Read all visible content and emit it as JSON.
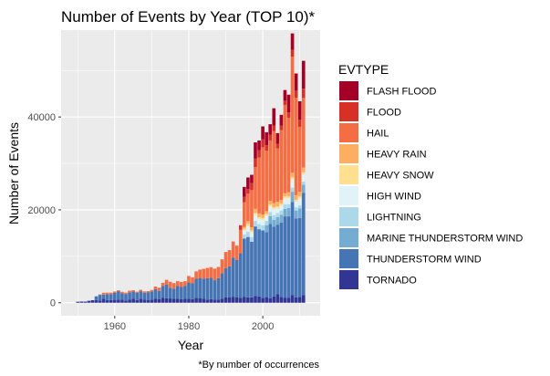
{
  "chart_data": {
    "type": "bar",
    "stacked": true,
    "title": "Number of Events by Year (TOP 10)*",
    "caption": "*By number of occurrences",
    "xlabel": "Year",
    "ylabel": "Number of Events",
    "xlim": [
      1945.5,
      2015.5
    ],
    "ylim": [
      -2800,
      58700
    ],
    "x_ticks": [
      1960,
      1980,
      2000
    ],
    "y_ticks": [
      0,
      20000,
      40000
    ],
    "x_tick_labels": [
      "1960",
      "1980",
      "2000"
    ],
    "y_tick_labels": [
      "0",
      "20000",
      "40000"
    ],
    "grid": true,
    "legend": {
      "title": "EVTYPE",
      "position": "right"
    },
    "years": [
      1950,
      1951,
      1952,
      1953,
      1954,
      1955,
      1956,
      1957,
      1958,
      1959,
      1960,
      1961,
      1962,
      1963,
      1964,
      1965,
      1966,
      1967,
      1968,
      1969,
      1970,
      1971,
      1972,
      1973,
      1974,
      1975,
      1976,
      1977,
      1978,
      1979,
      1980,
      1981,
      1982,
      1983,
      1984,
      1985,
      1986,
      1987,
      1988,
      1989,
      1990,
      1991,
      1992,
      1993,
      1994,
      1995,
      1996,
      1997,
      1998,
      1999,
      2000,
      2001,
      2002,
      2003,
      2004,
      2005,
      2006,
      2007,
      2008,
      2009,
      2010,
      2011
    ],
    "series": [
      {
        "name": "TORNADO",
        "color": "#313695",
        "values": [
          220,
          260,
          240,
          420,
          550,
          590,
          500,
          850,
          570,
          580,
          620,
          690,
          650,
          480,
          700,
          900,
          580,
          880,
          650,
          610,
          660,
          890,
          750,
          1100,
          950,
          920,
          830,
          850,
          790,
          850,
          860,
          780,
          1050,
          930,
          900,
          690,
          760,
          650,
          700,
          850,
          1130,
          1130,
          1300,
          1200,
          1090,
          1230,
          1170,
          1150,
          1430,
          1340,
          1070,
          1210,
          940,
          1370,
          1820,
          1260,
          1100,
          1100,
          1690,
          1160,
          1280,
          1690
        ]
      },
      {
        "name": "THUNDERSTORM WIND",
        "color": "#4575B4",
        "values": [
          0,
          0,
          0,
          0,
          0,
          800,
          1200,
          900,
          1300,
          1300,
          1500,
          1800,
          1400,
          1400,
          1500,
          1500,
          1600,
          1600,
          1500,
          1600,
          1800,
          2000,
          1800,
          2500,
          3000,
          2300,
          2200,
          2800,
          2600,
          2800,
          3500,
          3400,
          4100,
          4400,
          4300,
          4600,
          4600,
          4200,
          4600,
          5500,
          6300,
          6700,
          8400,
          8000,
          9600,
          12600,
          13000,
          12000,
          15000,
          14500,
          14500,
          14000,
          16000,
          15000,
          15000,
          16000,
          17500,
          17500,
          20000,
          17000,
          17000,
          22000
        ]
      },
      {
        "name": "MARINE THUNDERSTORM WIND",
        "color": "#74ADD1",
        "values": [
          0,
          0,
          0,
          0,
          0,
          0,
          0,
          0,
          0,
          0,
          0,
          0,
          0,
          0,
          0,
          0,
          0,
          0,
          0,
          0,
          0,
          0,
          0,
          0,
          0,
          0,
          0,
          0,
          0,
          0,
          0,
          0,
          0,
          0,
          0,
          0,
          0,
          0,
          0,
          0,
          0,
          0,
          0,
          0,
          0,
          0,
          0,
          0,
          0,
          0,
          0,
          1500,
          1700,
          1500,
          1600,
          1700,
          1600,
          1800,
          2200,
          1700,
          2000,
          1700
        ]
      },
      {
        "name": "LIGHTNING",
        "color": "#ABD9E9",
        "values": [
          0,
          0,
          0,
          0,
          0,
          0,
          0,
          0,
          0,
          0,
          0,
          0,
          0,
          0,
          0,
          0,
          0,
          0,
          0,
          0,
          0,
          0,
          0,
          0,
          0,
          0,
          0,
          0,
          0,
          0,
          0,
          0,
          0,
          0,
          0,
          0,
          0,
          0,
          0,
          0,
          0,
          0,
          0,
          0,
          0,
          900,
          1100,
          1000,
          1200,
          1100,
          1100,
          900,
          900,
          1000,
          900,
          900,
          1000,
          800,
          900,
          700,
          700,
          700
        ]
      },
      {
        "name": "HIGH WIND",
        "color": "#E0F3F8",
        "values": [
          0,
          0,
          0,
          0,
          0,
          0,
          0,
          0,
          0,
          0,
          0,
          0,
          0,
          0,
          0,
          0,
          0,
          0,
          0,
          0,
          0,
          0,
          0,
          0,
          0,
          0,
          0,
          0,
          0,
          0,
          0,
          0,
          0,
          0,
          0,
          0,
          0,
          0,
          0,
          0,
          0,
          0,
          0,
          0,
          0,
          800,
          1200,
          1000,
          1300,
          1100,
          1200,
          1100,
          1200,
          1300,
          1000,
          1100,
          1300,
          1300,
          1800,
          1200,
          1500,
          1600
        ]
      },
      {
        "name": "HEAVY SNOW",
        "color": "#FEE090",
        "values": [
          0,
          0,
          0,
          0,
          0,
          0,
          0,
          0,
          0,
          0,
          0,
          0,
          0,
          0,
          0,
          0,
          0,
          0,
          0,
          0,
          0,
          0,
          0,
          0,
          0,
          0,
          0,
          0,
          0,
          0,
          0,
          0,
          0,
          0,
          0,
          0,
          0,
          0,
          0,
          0,
          0,
          0,
          0,
          0,
          0,
          400,
          500,
          400,
          400,
          400,
          400,
          400,
          400,
          400,
          400,
          400,
          400,
          400,
          400,
          400,
          400,
          400
        ]
      },
      {
        "name": "HEAVY RAIN",
        "color": "#FDAE61",
        "values": [
          0,
          0,
          0,
          0,
          0,
          0,
          0,
          0,
          0,
          0,
          0,
          0,
          0,
          0,
          0,
          0,
          0,
          0,
          0,
          0,
          0,
          0,
          0,
          0,
          0,
          0,
          0,
          0,
          0,
          0,
          0,
          0,
          0,
          0,
          0,
          0,
          0,
          0,
          0,
          0,
          0,
          0,
          0,
          0,
          0,
          400,
          600,
          700,
          900,
          800,
          700,
          600,
          800,
          900,
          1000,
          800,
          700,
          900,
          1000,
          1000,
          1000,
          1000
        ]
      },
      {
        "name": "HAIL",
        "color": "#F46D43",
        "values": [
          0,
          0,
          0,
          0,
          0,
          0,
          100,
          400,
          300,
          300,
          300,
          200,
          300,
          300,
          400,
          300,
          200,
          300,
          300,
          300,
          300,
          600,
          700,
          700,
          1000,
          1300,
          1200,
          1000,
          1100,
          1000,
          1400,
          1300,
          1600,
          1800,
          2100,
          2200,
          2300,
          2500,
          2400,
          3000,
          3500,
          3500,
          3500,
          3100,
          5000,
          5300,
          5900,
          8000,
          9000,
          12000,
          14500,
          13000,
          13000,
          15500,
          11500,
          15000,
          19000,
          16000,
          25000,
          21000,
          14000,
          15000
        ]
      },
      {
        "name": "FLOOD",
        "color": "#D73027",
        "values": [
          0,
          0,
          0,
          0,
          0,
          0,
          0,
          0,
          0,
          0,
          0,
          0,
          0,
          0,
          0,
          0,
          0,
          0,
          0,
          0,
          0,
          0,
          0,
          0,
          0,
          0,
          0,
          0,
          0,
          0,
          0,
          0,
          0,
          0,
          0,
          0,
          0,
          0,
          0,
          0,
          0,
          0,
          0,
          0,
          1000,
          1200,
          1000,
          1500,
          1800,
          1600,
          1700,
          1200,
          1200,
          1200,
          1000,
          1000,
          900,
          1200,
          1500,
          1500,
          1500,
          2000
        ]
      },
      {
        "name": "FLASH FLOOD",
        "color": "#A50026",
        "values": [
          0,
          0,
          0,
          0,
          0,
          0,
          0,
          0,
          0,
          0,
          0,
          0,
          0,
          0,
          0,
          0,
          0,
          0,
          0,
          0,
          0,
          0,
          0,
          0,
          0,
          0,
          0,
          0,
          0,
          0,
          0,
          0,
          0,
          0,
          0,
          0,
          0,
          0,
          0,
          0,
          0,
          0,
          0,
          0,
          0,
          2100,
          2500,
          1800,
          3500,
          2100,
          2800,
          2800,
          2300,
          3700,
          2300,
          2300,
          2300,
          3800,
          3500,
          3700,
          4000,
          6000
        ]
      }
    ],
    "legend_order": [
      "FLASH FLOOD",
      "FLOOD",
      "HAIL",
      "HEAVY RAIN",
      "HEAVY SNOW",
      "HIGH WIND",
      "LIGHTNING",
      "MARINE THUNDERSTORM WIND",
      "THUNDERSTORM WIND",
      "TORNADO"
    ]
  }
}
